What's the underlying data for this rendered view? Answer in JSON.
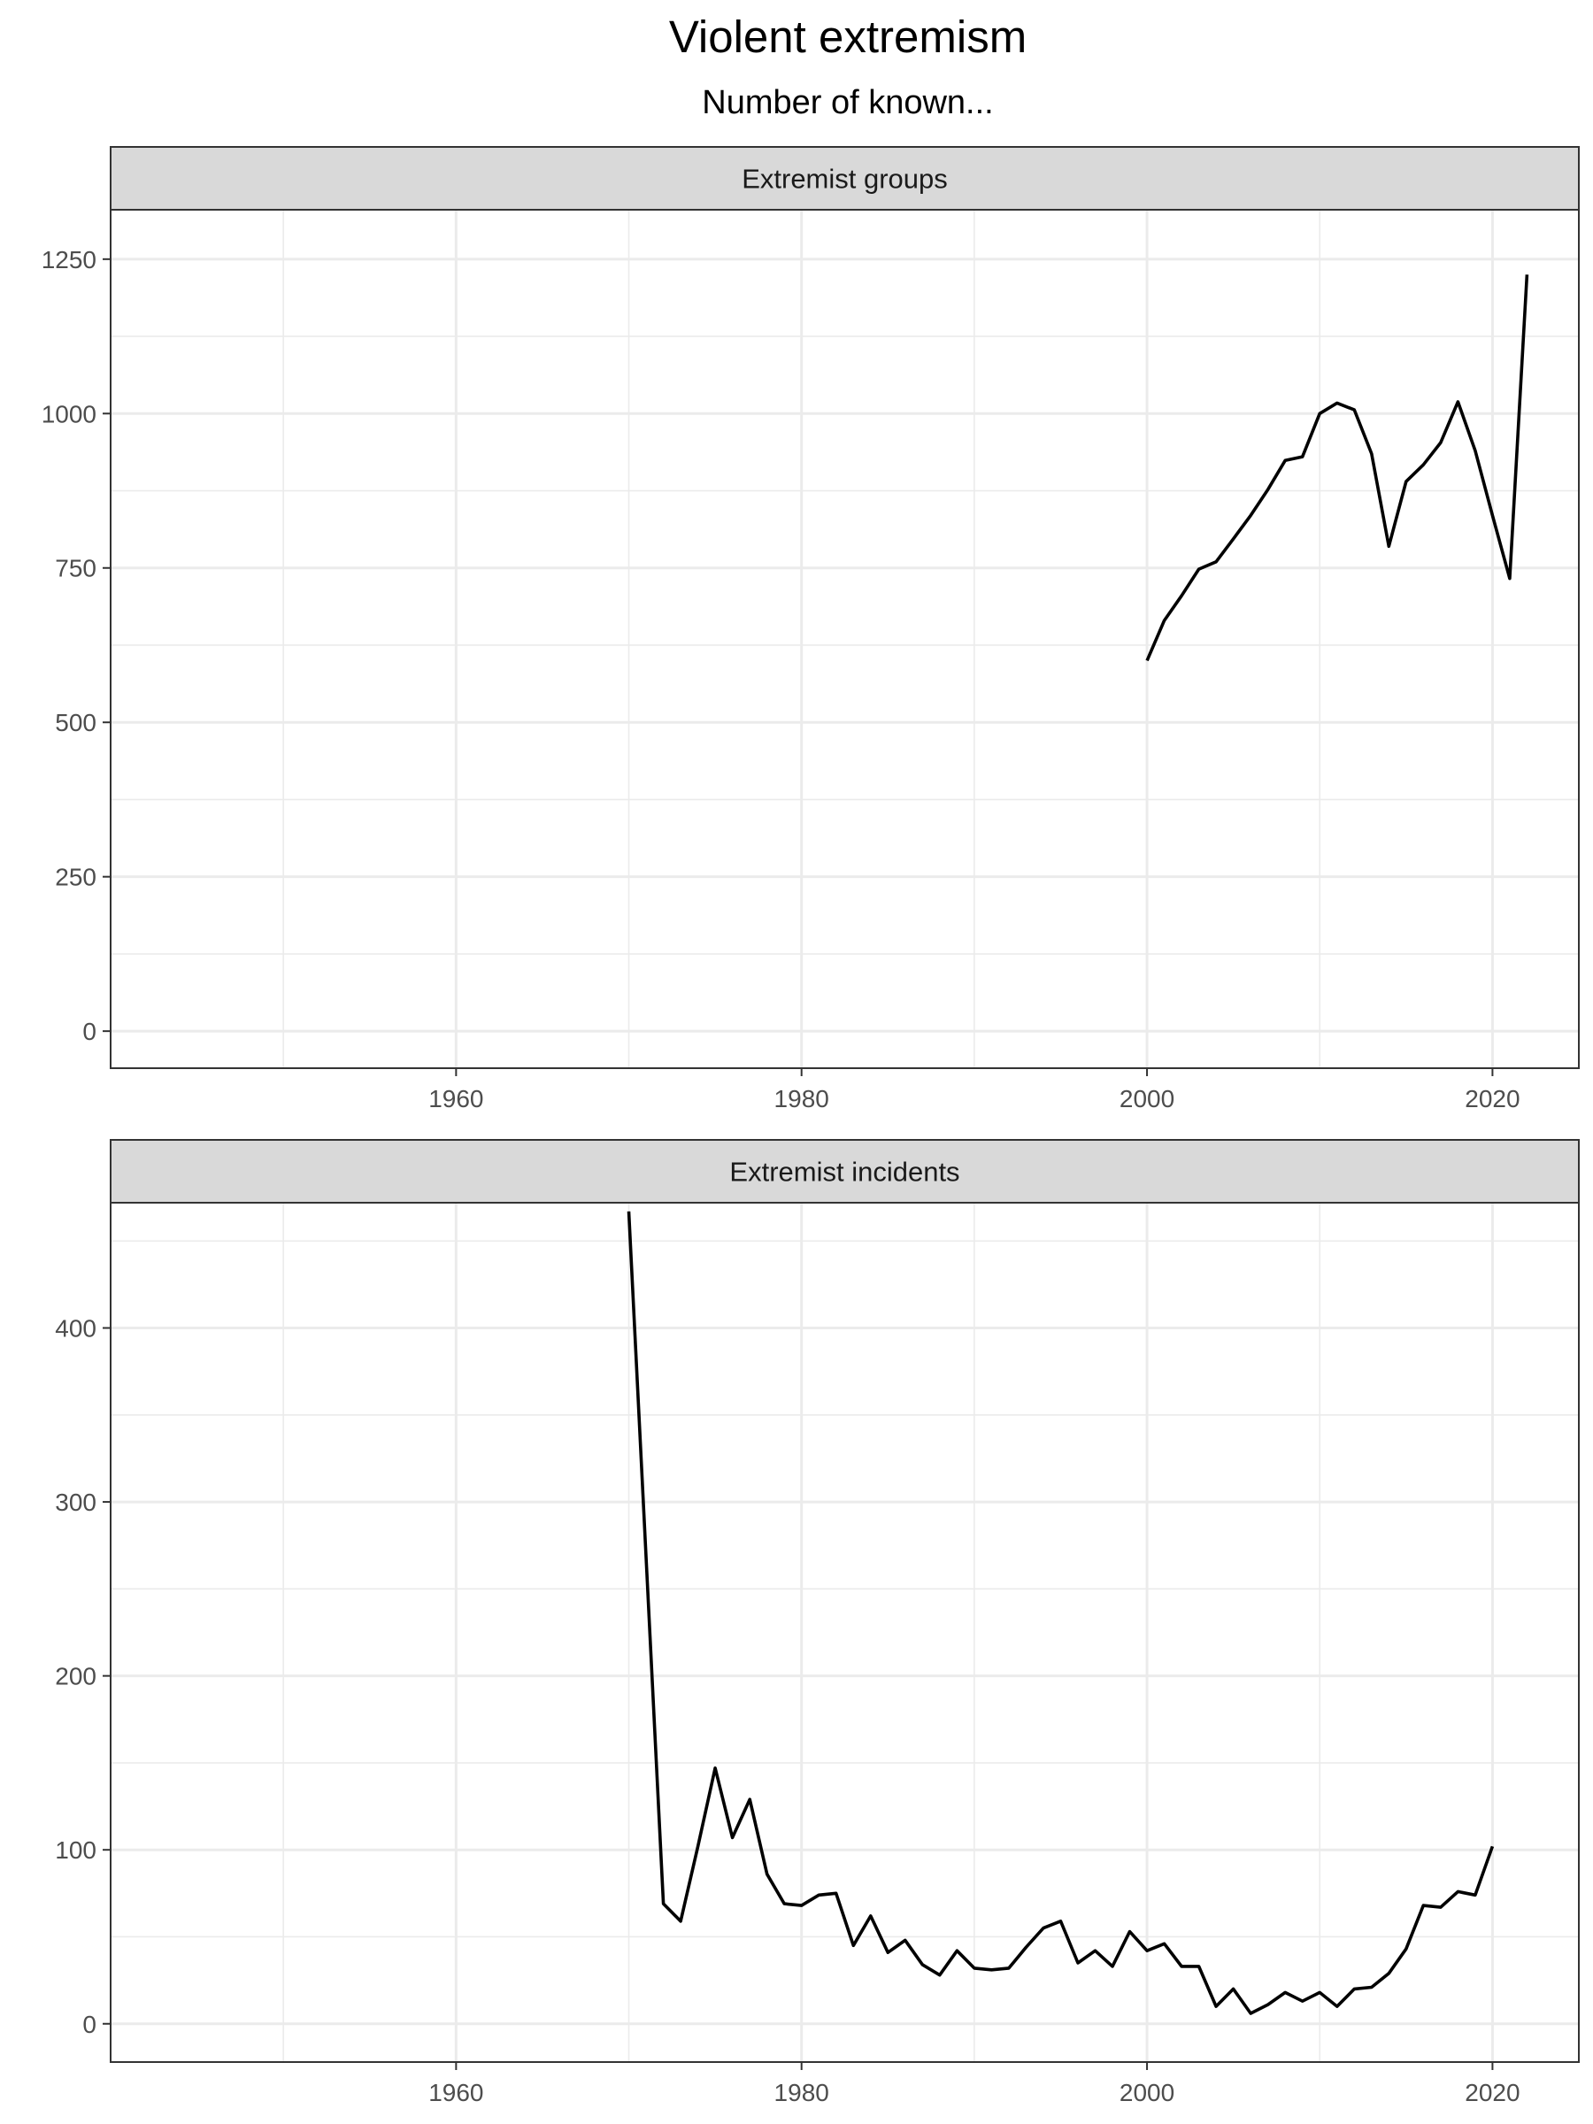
{
  "chart_data": {
    "type": "line",
    "title": "Violent extremism",
    "subtitle": "Number of known...",
    "xlim": [
      1940,
      2025
    ],
    "x_ticks": [
      1960,
      1980,
      2000,
      2020
    ],
    "grid": true,
    "panels": [
      {
        "strip_label": "Extremist groups",
        "ylim": [
          -60,
          1330
        ],
        "y_ticks": [
          0,
          250,
          500,
          750,
          1000,
          1250
        ],
        "x": [
          2000,
          2001,
          2002,
          2003,
          2004,
          2005,
          2006,
          2007,
          2008,
          2009,
          2010,
          2011,
          2012,
          2013,
          2014,
          2015,
          2016,
          2017,
          2018,
          2019,
          2020,
          2021,
          2022
        ],
        "values": [
          600,
          665,
          705,
          748,
          760,
          797,
          835,
          877,
          924,
          930,
          1000,
          1017,
          1006,
          935,
          785,
          890,
          917,
          953,
          1019,
          940,
          835,
          733,
          1225
        ]
      },
      {
        "strip_label": "Extremist incidents",
        "ylim": [
          -22,
          472
        ],
        "y_ticks": [
          0,
          100,
          200,
          300,
          400
        ],
        "x": [
          1970,
          1972,
          1973,
          1974,
          1975,
          1976,
          1977,
          1978,
          1979,
          1980,
          1981,
          1982,
          1983,
          1984,
          1985,
          1986,
          1987,
          1988,
          1989,
          1990,
          1991,
          1992,
          1993,
          1994,
          1995,
          1996,
          1997,
          1998,
          1999,
          2000,
          2001,
          2002,
          2003,
          2004,
          2005,
          2006,
          2007,
          2008,
          2009,
          2010,
          2011,
          2012,
          2013,
          2014,
          2015,
          2016,
          2017,
          2018,
          2019,
          2020
        ],
        "values": [
          467,
          69,
          59,
          102,
          147,
          107,
          129,
          86,
          69,
          68,
          74,
          75,
          45,
          62,
          41,
          48,
          34,
          28,
          42,
          32,
          31,
          32,
          44,
          55,
          59,
          35,
          42,
          33,
          53,
          42,
          46,
          33,
          33,
          10,
          20,
          6,
          11,
          18,
          13,
          18,
          10,
          20,
          21,
          29,
          43,
          68,
          67,
          76,
          74,
          102
        ]
      }
    ]
  }
}
